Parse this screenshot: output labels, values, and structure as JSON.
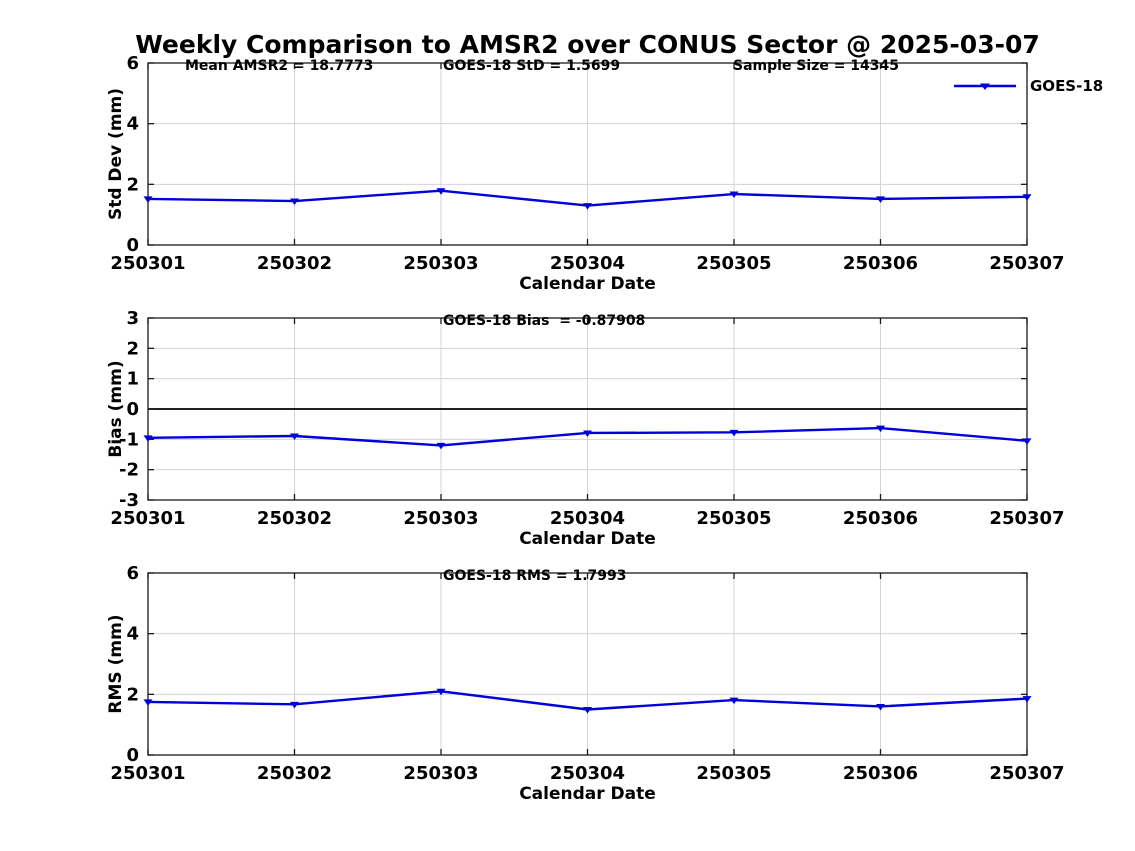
{
  "title": "Weekly Comparison to AMSR2 over CONUS Sector @ 2025-03-07",
  "colors": {
    "line": "#0000dd",
    "grid": "#d3d3d3",
    "axis": "#1a1a1a",
    "zero_line": "#000000",
    "text": "#000000"
  },
  "legend": {
    "label": "GOES-18"
  },
  "chart_data": [
    {
      "type": "line",
      "ylabel": "Std Dev (mm)",
      "xlabel": "Calendar Date",
      "ylim": [
        0,
        6
      ],
      "yticks": [
        0,
        2,
        4,
        6
      ],
      "grid": true,
      "legend_position": "top-right",
      "categories": [
        "250301",
        "250302",
        "250303",
        "250304",
        "250305",
        "250306",
        "250307"
      ],
      "series": [
        {
          "name": "GOES-18",
          "marker": "triangle-down",
          "values": [
            1.52,
            1.45,
            1.79,
            1.3,
            1.68,
            1.52,
            1.59
          ]
        }
      ],
      "annotations": [
        "Mean AMSR2 = 18.7773",
        "GOES-18 StD = 1.5699",
        "Sample Size = 14345"
      ]
    },
    {
      "type": "line",
      "ylabel": "Bias (mm)",
      "xlabel": "Calendar Date",
      "ylim": [
        -3,
        3
      ],
      "yticks": [
        -3,
        -2,
        -1,
        0,
        1,
        2,
        3
      ],
      "grid": true,
      "zero_line": true,
      "categories": [
        "250301",
        "250302",
        "250303",
        "250304",
        "250305",
        "250306",
        "250307"
      ],
      "series": [
        {
          "name": "GOES-18",
          "marker": "triangle-down",
          "values": [
            -0.95,
            -0.89,
            -1.2,
            -0.79,
            -0.77,
            -0.63,
            -1.05
          ]
        }
      ],
      "annotations": [
        "GOES-18 Bias  = -0.87908"
      ]
    },
    {
      "type": "line",
      "ylabel": "RMS (mm)",
      "xlabel": "Calendar Date",
      "ylim": [
        0,
        6
      ],
      "yticks": [
        0,
        2,
        4,
        6
      ],
      "grid": true,
      "categories": [
        "250301",
        "250302",
        "250303",
        "250304",
        "250305",
        "250306",
        "250307"
      ],
      "series": [
        {
          "name": "GOES-18",
          "marker": "triangle-down",
          "values": [
            1.75,
            1.67,
            2.1,
            1.5,
            1.81,
            1.6,
            1.86
          ]
        }
      ],
      "annotations": [
        "GOES-18 RMS = 1.7993"
      ]
    }
  ]
}
